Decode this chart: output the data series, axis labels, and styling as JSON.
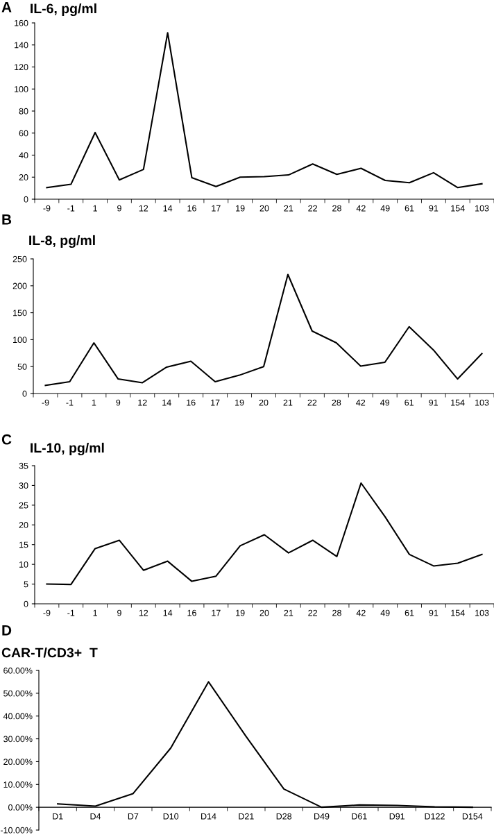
{
  "chart_data": [
    {
      "type": "line",
      "title": "IL-6, pg/ml",
      "annotations": [
        "A"
      ],
      "categories": [
        "-9",
        "-1",
        "1",
        "9",
        "12",
        "14",
        "16",
        "17",
        "19",
        "20",
        "21",
        "22",
        "28",
        "42",
        "49",
        "61",
        "91",
        "154",
        "103"
      ],
      "series": [
        {
          "color": "#000000",
          "values": [
            10.5,
            13.5,
            60.5,
            17.5,
            27,
            151,
            19.5,
            11.5,
            20,
            20.5,
            22,
            32,
            22.5,
            28,
            17,
            15,
            24,
            10.5,
            14
          ]
        }
      ],
      "ylim": [
        0,
        160
      ],
      "yticks": [
        0,
        20,
        40,
        60,
        80,
        100,
        120,
        140,
        160
      ],
      "grid": false,
      "legend": false
    },
    {
      "type": "line",
      "title": "IL-8, pg/ml",
      "annotations": [
        "B"
      ],
      "categories": [
        "-9",
        "-1",
        "1",
        "9",
        "12",
        "14",
        "16",
        "17",
        "19",
        "20",
        "21",
        "22",
        "28",
        "42",
        "49",
        "61",
        "91",
        "154",
        "103"
      ],
      "series": [
        {
          "color": "#000000",
          "values": [
            15,
            22,
            94,
            27,
            20,
            49,
            60,
            22,
            34,
            50,
            221,
            116,
            94,
            51,
            58,
            124,
            81,
            27,
            74
          ]
        }
      ],
      "ylim": [
        0,
        250
      ],
      "yticks": [
        0,
        50,
        100,
        150,
        200,
        250
      ],
      "grid": false,
      "legend": false
    },
    {
      "type": "line",
      "title": "IL-10, pg/ml",
      "annotations": [
        "C"
      ],
      "categories": [
        "-9",
        "-1",
        "1",
        "9",
        "12",
        "14",
        "16",
        "17",
        "19",
        "20",
        "21",
        "22",
        "28",
        "42",
        "49",
        "61",
        "91",
        "154",
        "103"
      ],
      "series": [
        {
          "color": "#000000",
          "values": [
            5,
            4.9,
            14,
            16.1,
            8.5,
            10.8,
            5.7,
            7,
            14.7,
            17.5,
            12.9,
            16.1,
            12,
            30.6,
            22,
            12.5,
            9.6,
            10.3,
            12.5
          ]
        }
      ],
      "ylim": [
        0,
        35
      ],
      "yticks": [
        0,
        5,
        10,
        15,
        20,
        25,
        30,
        35
      ],
      "grid": false,
      "legend": false
    },
    {
      "type": "line",
      "title": "CAR-T/CD3+  T",
      "annotations": [
        "D"
      ],
      "categories": [
        "D1",
        "D4",
        "D7",
        "D10",
        "D14",
        "D21",
        "D28",
        "D49",
        "D61",
        "D91",
        "D122",
        "D154"
      ],
      "series": [
        {
          "color": "#000000",
          "values": [
            1.5,
            0.5,
            6,
            26,
            55,
            31,
            8,
            0,
            1,
            0.8,
            0.2,
            0
          ]
        }
      ],
      "ylim": [
        -10,
        60
      ],
      "yticks": [
        {
          "value": -10,
          "label": "-10.00%"
        },
        {
          "value": 0,
          "label": "0.00%"
        },
        {
          "value": 10,
          "label": "10.00%"
        },
        {
          "value": 20,
          "label": "20.00%"
        },
        {
          "value": 30,
          "label": "30.00%"
        },
        {
          "value": 40,
          "label": "40.00%"
        },
        {
          "value": 50,
          "label": "50.00%"
        },
        {
          "value": 60,
          "label": "60.00%"
        }
      ],
      "grid": false,
      "legend": false
    }
  ]
}
